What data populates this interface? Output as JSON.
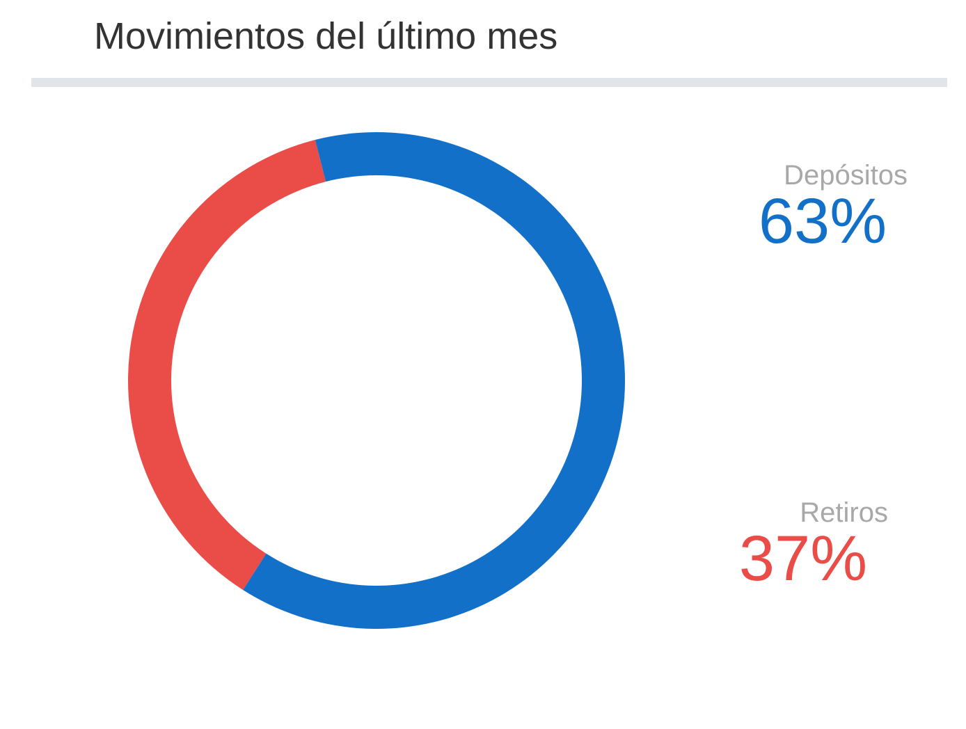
{
  "card": {
    "title": "Movimientos del último mes"
  },
  "chart_data": {
    "type": "pie",
    "style": "donut",
    "title": "Movimientos del último mes",
    "categories": [
      "Depósitos",
      "Retiros"
    ],
    "values": [
      63,
      37
    ],
    "value_labels": [
      "63%",
      "37%"
    ],
    "colors": [
      "#1270c8",
      "#ea4c48"
    ],
    "legend_position": "right"
  },
  "colors": {
    "deposits": "#1270c8",
    "withdrawals": "#ea4c48",
    "label": "#a8a8a8",
    "divider": "#e1e5ea",
    "title": "#333333"
  }
}
